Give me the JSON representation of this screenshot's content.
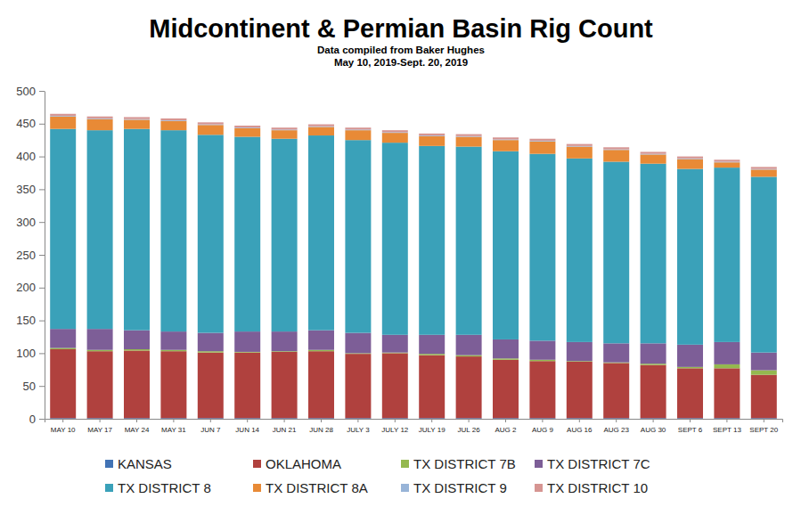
{
  "chart_data": {
    "type": "bar",
    "stacked": true,
    "grid": false,
    "legend": "bottom",
    "title": "Midcontinent & Permian Basin Rig Count",
    "subtitle": [
      "Data compiled from Baker Hughes",
      "May 10, 2019-Sept. 20, 2019"
    ],
    "categories": [
      "MAY 10",
      "MAY 17",
      "MAY 24",
      "MAY 31",
      "JUN 7",
      "JUN 14",
      "JUN 21",
      "JUN 28",
      "JULY 3",
      "JULY 12",
      "JULY 19",
      "JUL 26",
      "AUG 2",
      "AUG 9",
      "AUG 16",
      "AUG 23",
      "AUG 30",
      "SEPT 6",
      "SEPT 13",
      "SEPT 20"
    ],
    "ylim": [
      0,
      500
    ],
    "yticks": [
      0,
      50,
      100,
      150,
      200,
      250,
      300,
      350,
      400,
      450,
      500
    ],
    "series": [
      {
        "name": "KANSAS",
        "color": "#4273b5",
        "values": [
          1,
          1,
          1,
          1,
          1,
          1,
          1,
          1,
          1,
          1,
          1,
          1,
          1,
          1,
          1,
          1,
          1,
          1,
          1,
          1
        ]
      },
      {
        "name": "OKLAHOMA",
        "color": "#b0413e",
        "values": [
          105,
          102,
          103,
          102,
          100,
          100,
          101,
          102,
          98,
          99,
          96,
          94,
          89,
          87,
          86,
          84,
          81,
          76,
          76,
          66
        ]
      },
      {
        "name": "TX DISTRICT 7B",
        "color": "#94b84f",
        "values": [
          2,
          2,
          2,
          2,
          2,
          1,
          1,
          2,
          1,
          1,
          2,
          2,
          2,
          2,
          1,
          1,
          2,
          2,
          6,
          7
        ]
      },
      {
        "name": "TX DISTRICT 7C",
        "color": "#7d5e97",
        "values": [
          29,
          32,
          29,
          28,
          28,
          31,
          30,
          30,
          31,
          27,
          29,
          31,
          29,
          29,
          29,
          29,
          31,
          34,
          34,
          27
        ]
      },
      {
        "name": "TX DISTRICT 8",
        "color": "#3aa1b9",
        "values": [
          305,
          303,
          307,
          307,
          302,
          297,
          294,
          297,
          294,
          293,
          288,
          287,
          287,
          285,
          280,
          277,
          274,
          268,
          266,
          268
        ]
      },
      {
        "name": "TX DISTRICT 8A",
        "color": "#e88a36",
        "values": [
          19,
          17,
          14,
          14,
          15,
          13,
          13,
          13,
          15,
          15,
          15,
          15,
          17,
          19,
          18,
          18,
          14,
          15,
          8,
          11
        ]
      },
      {
        "name": "TX DISTRICT 9",
        "color": "#98b4d8",
        "values": [
          1,
          1,
          1,
          1,
          1,
          1,
          1,
          1,
          1,
          1,
          1,
          1,
          1,
          1,
          1,
          1,
          1,
          1,
          1,
          1
        ]
      },
      {
        "name": "TX DISTRICT 10",
        "color": "#d69592",
        "values": [
          3,
          3,
          3,
          3,
          3,
          3,
          3,
          3,
          3,
          3,
          3,
          3,
          3,
          3,
          3,
          3,
          3,
          3,
          3,
          3
        ]
      }
    ]
  }
}
